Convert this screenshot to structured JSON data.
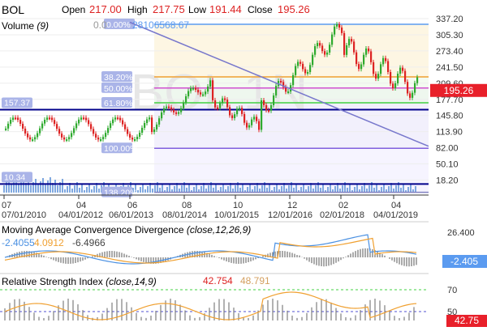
{
  "header": {
    "symbol": "BOL",
    "open_label": "Open",
    "open_value": "217.00",
    "high_label": "High",
    "high_value": "217.75",
    "low_label": "Low",
    "low_value": "191.44",
    "close_label": "Close",
    "close_value": "195.26"
  },
  "volume_label": "Volume",
  "volume_param": "(9)",
  "volume_value_a": "0.0",
  "volume_value_b": "28106568.67",
  "watermark": "BOL 1N",
  "price_axis": [
    "337.20",
    "305.30",
    "273.40",
    "241.50",
    "209.60",
    "177.70",
    "145.80",
    "113.90",
    "82.00",
    "50.10",
    "18.20"
  ],
  "price_badge": "195.26",
  "fib_levels": [
    {
      "label": "0.00%",
      "price": 326
    },
    {
      "label": "38.20%",
      "price": 222
    },
    {
      "label": "50.00%",
      "price": 200
    },
    {
      "label": "61.80%",
      "price": 171
    },
    {
      "label": "100.00%",
      "price": 81
    },
    {
      "label": "138.20%",
      "price": -6
    }
  ],
  "hlines": [
    {
      "label": "157.37",
      "price": 157.37
    },
    {
      "label": "10.34",
      "price": 10.34
    }
  ],
  "x_axis_top": [
    "07",
    "04",
    "06",
    "08",
    "10",
    "12",
    "02",
    "04"
  ],
  "x_axis_bottom": [
    "07/01/2010",
    "04/01/2012",
    "06/01/2013",
    "08/01/2014",
    "10/01/2015",
    "12/01/2016",
    "02/01/2018",
    "04/01/2019"
  ],
  "macd": {
    "title": "Moving Average Convergence Divergence",
    "params": "(close,12,26,9)",
    "v1": "-2.4055",
    "v2": "4.0912",
    "v3": "-6.4966",
    "axis_top": "26.400",
    "badge": "-2.405"
  },
  "rsi": {
    "title": "Relative Strength Index",
    "params": "(close,14,9)",
    "v1": "42.754",
    "v2": "48.791",
    "axis_70": "70",
    "axis_50": "50",
    "badge": "42.75"
  },
  "colors": {
    "up": "#2eaa2e",
    "down": "#dd2222",
    "fib": "#6a6adf",
    "trend": "#7777cc",
    "hline": "#00008b",
    "macd_line": "#4a90e2",
    "signal": "#f0a030",
    "rsi": "#f0a030",
    "badge_red": "#e8202a",
    "badge_blue": "#5b9bf0"
  }
}
